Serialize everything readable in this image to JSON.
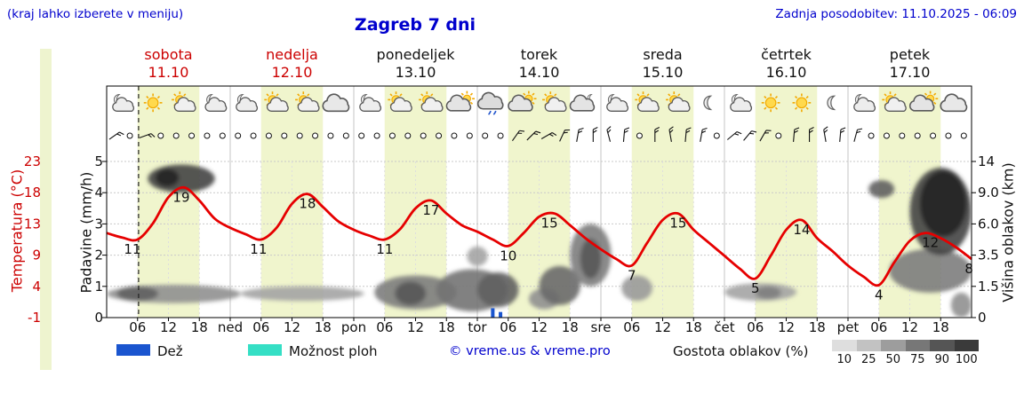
{
  "header": {
    "hint": "(kraj lahko izberete v meniju)",
    "title": "Zagreb 7 dni",
    "updated": "Zadnja posodobitev: 11.10.2025 - 06:09"
  },
  "axes": {
    "temperature_label": "Temperatura (°C)",
    "temperature_ticks": [
      "23",
      "18",
      "13",
      "9",
      "4",
      "-1"
    ],
    "precipitation_label": "Padavine (mm/h)",
    "precipitation_ticks": [
      "5",
      "4",
      "3",
      "2",
      "1",
      "0"
    ],
    "cloud_height_label": "Višina oblakov (km)",
    "cloud_height_ticks": [
      "14",
      "9.0",
      "6.0",
      "3.5",
      "1.5",
      "0"
    ],
    "time_ticks": [
      "06",
      "12",
      "18"
    ],
    "day_boundary_labels": [
      "ned",
      "pon",
      "tor",
      "sre",
      "čet",
      "pet"
    ]
  },
  "legend": {
    "rain_label": "Dež",
    "rain_color": "#1a55cf",
    "showers_label": "Možnost ploh",
    "showers_color": "#35dfc5",
    "copyright": "© vreme.us & vreme.pro",
    "cloud_density_label": "Gostota oblakov (%)",
    "cloud_density_ticks": [
      "10",
      "25",
      "50",
      "75",
      "90",
      "100"
    ],
    "cloud_density_colors": [
      "#dedede",
      "#c2c2c2",
      "#9d9d9d",
      "#777777",
      "#555555",
      "#3a3a3a"
    ]
  },
  "chart_data": {
    "type": "meteogram",
    "location": "Zagreb",
    "days": [
      {
        "name": "sobota",
        "date": "11.10",
        "color": "#cc0000"
      },
      {
        "name": "nedelja",
        "date": "12.10",
        "color": "#cc0000"
      },
      {
        "name": "ponedeljek",
        "date": "13.10",
        "color": "#111111"
      },
      {
        "name": "torek",
        "date": "14.10",
        "color": "#111111"
      },
      {
        "name": "sreda",
        "date": "15.10",
        "color": "#111111"
      },
      {
        "name": "četrtek",
        "date": "16.10",
        "color": "#111111"
      },
      {
        "name": "petek",
        "date": "17.10",
        "color": "#111111"
      }
    ],
    "day_band_color": "#f0f5cd",
    "current_time_hour": 6.2,
    "temperature": {
      "unit": "°C",
      "range": [
        -1,
        23
      ],
      "color": "#e60000",
      "step_hours": 3,
      "values": [
        12,
        11.3,
        11,
        13.5,
        17.5,
        19,
        17,
        14.2,
        12.8,
        11.8,
        11,
        12.8,
        16.5,
        18,
        16,
        13.8,
        12.5,
        11.6,
        11,
        12.6,
        15.8,
        17,
        15,
        13.2,
        12.2,
        11,
        10,
        12,
        14.5,
        15,
        13.2,
        11.2,
        9.5,
        8,
        7,
        10.5,
        14,
        15,
        12.5,
        10.5,
        8.5,
        6.5,
        5,
        8.5,
        12.5,
        14,
        11.2,
        9.2,
        7,
        5.3,
        4,
        7.5,
        10.8,
        12,
        11.2,
        9.8,
        8
      ],
      "point_labels": [
        {
          "hour": 5,
          "value": 11
        },
        {
          "hour": 14.5,
          "value": 19
        },
        {
          "hour": 29.5,
          "value": 11
        },
        {
          "hour": 39,
          "value": 18
        },
        {
          "hour": 54,
          "value": 11
        },
        {
          "hour": 63,
          "value": 17
        },
        {
          "hour": 78,
          "value": 10
        },
        {
          "hour": 86,
          "value": 15
        },
        {
          "hour": 102,
          "value": 7
        },
        {
          "hour": 111,
          "value": 15
        },
        {
          "hour": 126,
          "value": 5
        },
        {
          "hour": 135,
          "value": 14
        },
        {
          "hour": 150,
          "value": 4
        },
        {
          "hour": 160,
          "value": 12
        },
        {
          "hour": 167.5,
          "value": 8
        }
      ]
    },
    "precipitation": {
      "unit": "mm/h",
      "range": [
        0,
        5
      ],
      "bars": [
        {
          "hour": 75,
          "value": 0.3
        },
        {
          "hour": 76.5,
          "value": 0.18
        }
      ]
    },
    "cloud_height": {
      "unit": "km",
      "tick_values": [
        0,
        1.5,
        3.5,
        6.0,
        9.0,
        14
      ]
    },
    "clouds": [
      {
        "h0": 0,
        "h1": 26,
        "km0": 0.7,
        "km1": 1.6,
        "density": 45
      },
      {
        "h0": 2,
        "h1": 10,
        "km0": 0.8,
        "km1": 1.5,
        "density": 70
      },
      {
        "h0": 8,
        "h1": 21,
        "km0": 9,
        "km1": 13.5,
        "density": 85
      },
      {
        "h0": 9.5,
        "h1": 14,
        "km0": 10,
        "km1": 12.8,
        "density": 100
      },
      {
        "h0": 26,
        "h1": 50,
        "km0": 0.8,
        "km1": 1.5,
        "density": 35
      },
      {
        "h0": 52,
        "h1": 68,
        "km0": 0.4,
        "km1": 2.2,
        "density": 55
      },
      {
        "h0": 56,
        "h1": 62,
        "km0": 0.6,
        "km1": 1.8,
        "density": 75
      },
      {
        "h0": 64,
        "h1": 78,
        "km0": 0.3,
        "km1": 2.6,
        "density": 60
      },
      {
        "h0": 70,
        "h1": 74,
        "km0": 2.8,
        "km1": 4.2,
        "density": 35
      },
      {
        "h0": 72,
        "h1": 80,
        "km0": 0.5,
        "km1": 2.4,
        "density": 70
      },
      {
        "h0": 82,
        "h1": 88,
        "km0": 0.4,
        "km1": 1.4,
        "density": 45
      },
      {
        "h0": 84,
        "h1": 92,
        "km0": 0.6,
        "km1": 2.8,
        "density": 65
      },
      {
        "h0": 90,
        "h1": 98,
        "km0": 1.5,
        "km1": 6.0,
        "density": 55
      },
      {
        "h0": 92,
        "h1": 96,
        "km0": 2.0,
        "km1": 4.8,
        "density": 75
      },
      {
        "h0": 100,
        "h1": 106,
        "km0": 0.8,
        "km1": 2.2,
        "density": 40
      },
      {
        "h0": 120,
        "h1": 134,
        "km0": 0.8,
        "km1": 1.7,
        "density": 35
      },
      {
        "h0": 126,
        "h1": 131,
        "km0": 0.9,
        "km1": 1.5,
        "density": 55
      },
      {
        "h0": 148,
        "h1": 153,
        "km0": 8.5,
        "km1": 11,
        "density": 70
      },
      {
        "h0": 152,
        "h1": 168,
        "km0": 1.2,
        "km1": 4.0,
        "density": 55
      },
      {
        "h0": 156,
        "h1": 168,
        "km0": 3.5,
        "km1": 13,
        "density": 85
      },
      {
        "h0": 158,
        "h1": 167,
        "km0": 5,
        "km1": 12.5,
        "density": 100
      },
      {
        "h0": 164,
        "h1": 168,
        "km0": 0,
        "km1": 1.2,
        "density": 45
      }
    ],
    "weather_icons": [
      [
        "moon-cloud",
        "sun",
        "sun-cloud",
        "moon-cloud"
      ],
      [
        "moon-cloud",
        "sun-cloud",
        "sun-cloud",
        "cloud"
      ],
      [
        "moon-cloud",
        "sun-cloud",
        "sun-cloud",
        "cloud-sun"
      ],
      [
        "cloud-drizzle",
        "cloud-sun",
        "sun-cloud",
        "cloud-moon"
      ],
      [
        "moon-cloud",
        "sun-cloud",
        "sun-cloud",
        "moon"
      ],
      [
        "moon-cloud",
        "sun",
        "sun",
        "moon"
      ],
      [
        "moon-cloud",
        "sun-cloud",
        "cloud-sun",
        "cloud"
      ]
    ],
    "wind": [
      "b55",
      "o",
      "b70",
      "o",
      "o",
      "o",
      "o",
      "o",
      "o",
      "o",
      "o",
      "o",
      "o",
      "o",
      "o",
      "o",
      "o",
      "o",
      "o",
      "o",
      "o",
      "o",
      "o",
      "o",
      "o",
      "o",
      "b35",
      "b45",
      "b60",
      "b25",
      "b10",
      "b0",
      "b-15",
      "b5",
      "o",
      "b0",
      "b-10",
      "b5",
      "b10",
      "o",
      "b50",
      "b40",
      "b30",
      "o",
      "b5",
      "b0",
      "b-10",
      "b5",
      "b15",
      "o",
      "o",
      "o",
      "o",
      "o",
      "o",
      "o"
    ]
  }
}
